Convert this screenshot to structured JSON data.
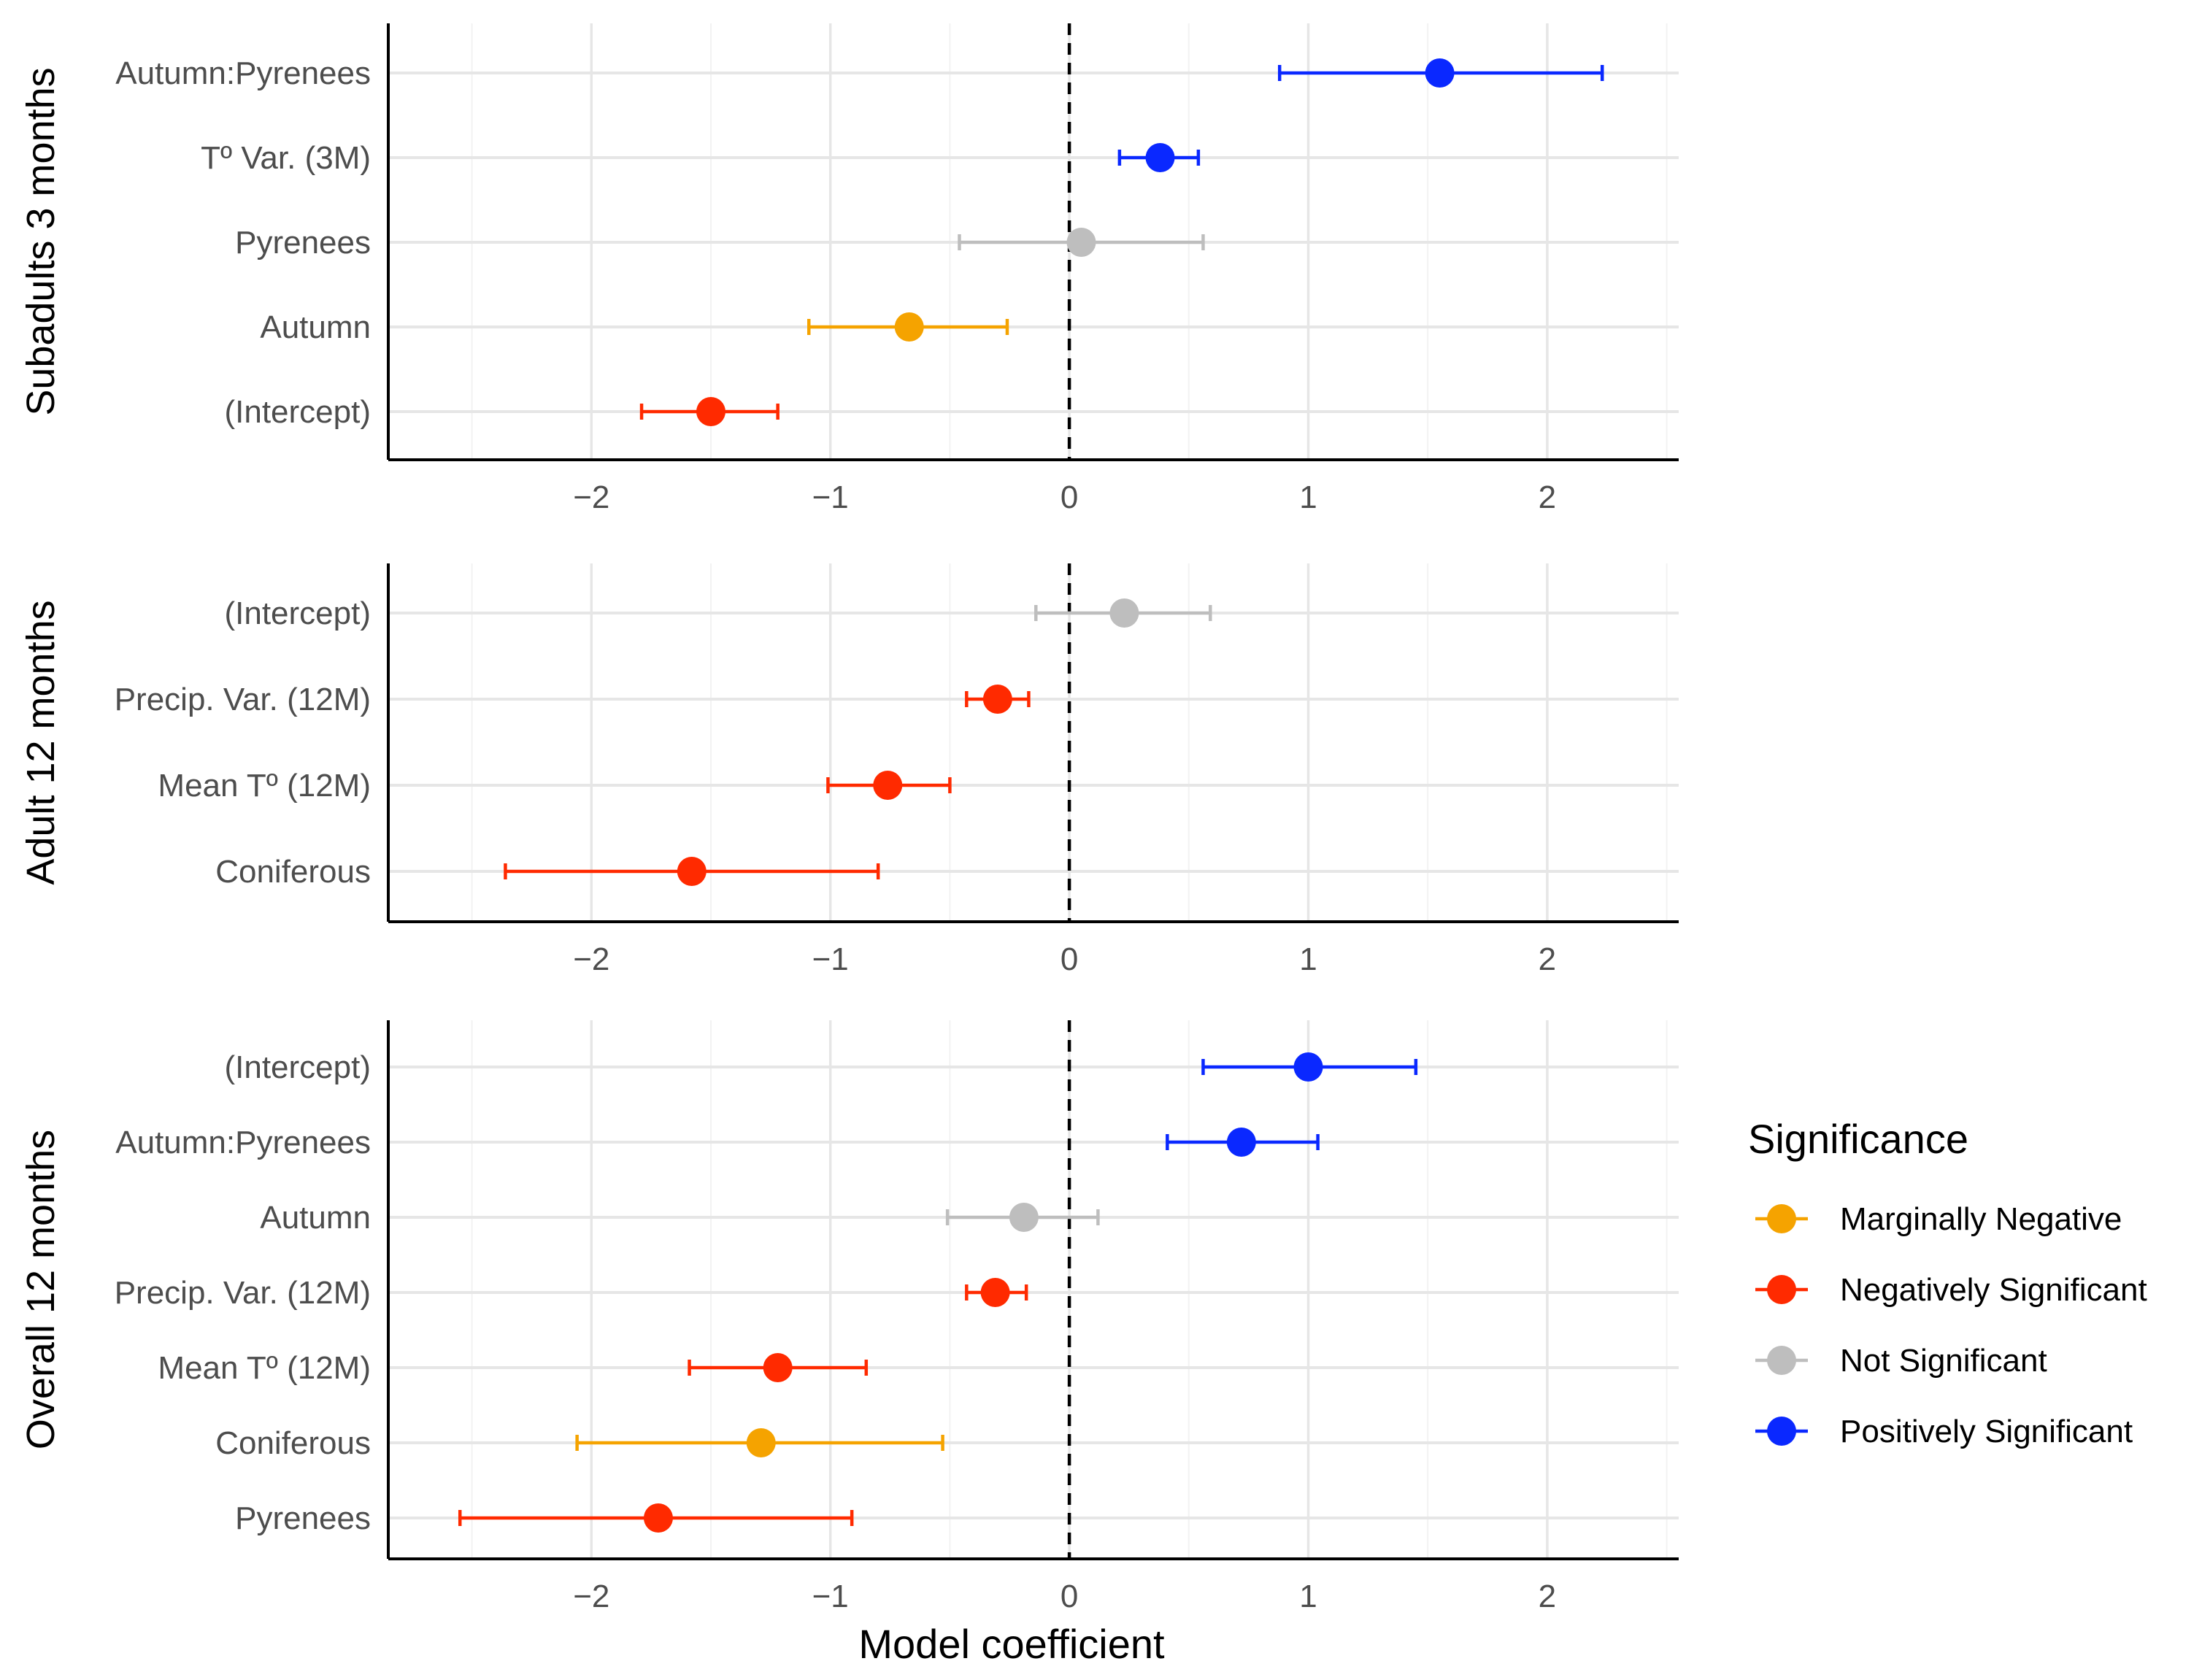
{
  "chart_data": {
    "type": "forest",
    "xlabel": "Model coefficient",
    "xlim": [
      -2.85,
      2.55
    ],
    "x_ticks": [
      -2,
      -1,
      0,
      1,
      2
    ],
    "x_tick_labels": [
      "−2",
      "−1",
      "0",
      "1",
      "2"
    ],
    "reference_line": 0,
    "legend": {
      "title": "Significance",
      "entries": [
        {
          "label": "Marginally Negative",
          "color": "#F5A300"
        },
        {
          "label": "Negatively Significant",
          "color": "#FF2A00"
        },
        {
          "label": "Not Significant",
          "color": "#BEBEBE"
        },
        {
          "label": "Positively Significant",
          "color": "#0A28FF"
        }
      ]
    },
    "panels": [
      {
        "title": "Subadults 3 months",
        "rows": [
          {
            "label": "Autumn:Pyrenees",
            "estimate": 1.55,
            "low": 0.88,
            "high": 2.23,
            "significance": "Positively Significant"
          },
          {
            "label": "Tº Var. (3M)",
            "estimate": 0.38,
            "low": 0.21,
            "high": 0.54,
            "significance": "Positively Significant"
          },
          {
            "label": "Pyrenees",
            "estimate": 0.05,
            "low": -0.46,
            "high": 0.56,
            "significance": "Not Significant"
          },
          {
            "label": "Autumn",
            "estimate": -0.67,
            "low": -1.09,
            "high": -0.26,
            "significance": "Marginally Negative"
          },
          {
            "label": "(Intercept)",
            "estimate": -1.5,
            "low": -1.79,
            "high": -1.22,
            "significance": "Negatively Significant"
          }
        ]
      },
      {
        "title": "Adult 12 months",
        "rows": [
          {
            "label": "(Intercept)",
            "estimate": 0.23,
            "low": -0.14,
            "high": 0.59,
            "significance": "Not Significant"
          },
          {
            "label": "Precip. Var. (12M)",
            "estimate": -0.3,
            "low": -0.43,
            "high": -0.17,
            "significance": "Negatively Significant"
          },
          {
            "label": "Mean Tº (12M)",
            "estimate": -0.76,
            "low": -1.01,
            "high": -0.5,
            "significance": "Negatively Significant"
          },
          {
            "label": "Coniferous",
            "estimate": -1.58,
            "low": -2.36,
            "high": -0.8,
            "significance": "Negatively Significant"
          }
        ]
      },
      {
        "title": "Overall 12 months",
        "rows": [
          {
            "label": "(Intercept)",
            "estimate": 1.0,
            "low": 0.56,
            "high": 1.45,
            "significance": "Positively Significant"
          },
          {
            "label": "Autumn:Pyrenees",
            "estimate": 0.72,
            "low": 0.41,
            "high": 1.04,
            "significance": "Positively Significant"
          },
          {
            "label": "Autumn",
            "estimate": -0.19,
            "low": -0.51,
            "high": 0.12,
            "significance": "Not Significant"
          },
          {
            "label": "Precip. Var. (12M)",
            "estimate": -0.31,
            "low": -0.43,
            "high": -0.18,
            "significance": "Negatively Significant"
          },
          {
            "label": "Mean Tº (12M)",
            "estimate": -1.22,
            "low": -1.59,
            "high": -0.85,
            "significance": "Negatively Significant"
          },
          {
            "label": "Coniferous",
            "estimate": -1.29,
            "low": -2.06,
            "high": -0.53,
            "significance": "Marginally Negative"
          },
          {
            "label": "Pyrenees",
            "estimate": -1.72,
            "low": -2.55,
            "high": -0.91,
            "significance": "Negatively Significant"
          }
        ]
      }
    ]
  }
}
